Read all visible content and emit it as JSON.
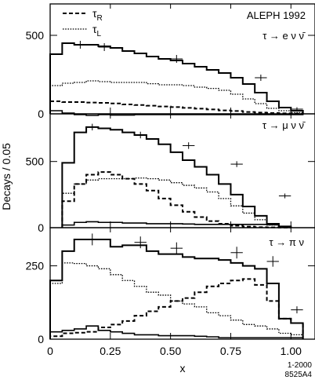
{
  "chart_data": {
    "type": "histogram",
    "title": "ALEPH 1992",
    "xlabel": "x",
    "ylabel": "Decays / 0.05",
    "xlim": [
      0,
      1.1
    ],
    "bin_width": 0.05,
    "x_ticks": [
      "0",
      "0.25",
      "0.50",
      "0.75",
      "1.00"
    ],
    "x_tick_values": [
      0,
      0.25,
      0.5,
      0.75,
      1.0
    ],
    "legend": [
      {
        "label_main": "τ",
        "label_sub": "R",
        "style": "dashed"
      },
      {
        "label_main": "τ",
        "label_sub": "L",
        "style": "dotted"
      }
    ],
    "credit": [
      "1-2000",
      "8525A4"
    ],
    "panels": [
      {
        "label": "τ → e ν ν̄",
        "ylim": [
          0,
          700
        ],
        "y_ticks": [
          0,
          500
        ],
        "start_bin": 0,
        "total": [
          380,
          450,
          440,
          440,
          430,
          420,
          400,
          385,
          365,
          350,
          340,
          320,
          300,
          280,
          260,
          230,
          190,
          135,
          80,
          40,
          20
        ],
        "right": [
          80,
          75,
          75,
          72,
          70,
          66,
          60,
          56,
          52,
          47,
          43,
          38,
          33,
          28,
          22,
          18,
          12,
          8,
          5,
          3,
          2
        ],
        "left": [
          180,
          195,
          200,
          210,
          205,
          200,
          200,
          200,
          192,
          185,
          185,
          180,
          170,
          162,
          150,
          125,
          95,
          65,
          35,
          20,
          8
        ],
        "background": [
          20,
          5,
          -5,
          -10,
          -5,
          -8,
          -8,
          -5,
          -5,
          -5,
          -5,
          -5,
          -5,
          -5,
          -5,
          -5,
          -5,
          -5,
          -5,
          -5,
          -5
        ],
        "data_x": [
          0.125,
          0.225,
          0.525,
          0.875,
          1.025
        ],
        "data_y": [
          440,
          425,
          350,
          230,
          30
        ],
        "data_err": [
          25,
          25,
          25,
          20,
          12
        ]
      },
      {
        "label": "τ → μ ν ν̄",
        "ylim": [
          0,
          860
        ],
        "y_ticks": [
          0,
          500
        ],
        "start_bin": 1,
        "total": [
          490,
          720,
          760,
          750,
          740,
          720,
          700,
          670,
          630,
          570,
          510,
          460,
          400,
          330,
          250,
          160,
          90,
          30,
          10
        ],
        "right": [
          200,
          330,
          400,
          420,
          400,
          370,
          330,
          280,
          220,
          170,
          120,
          80,
          50,
          30,
          15,
          8,
          4,
          2,
          1
        ],
        "left": [
          260,
          330,
          360,
          370,
          370,
          370,
          375,
          370,
          360,
          340,
          320,
          300,
          270,
          220,
          165,
          110,
          60,
          20,
          5
        ],
        "background": [
          20,
          40,
          45,
          40,
          40,
          35,
          35,
          30,
          30,
          30,
          28,
          25,
          25,
          25,
          25,
          25,
          25,
          22,
          10
        ],
        "data_x": [
          0.175,
          0.375,
          0.575,
          0.775,
          0.975
        ],
        "data_y": [
          760,
          700,
          620,
          480,
          240
        ],
        "data_err": [
          25,
          25,
          25,
          22,
          18
        ]
      },
      {
        "label": "τ → π ν",
        "ylim": [
          0,
          380
        ],
        "y_ticks": [
          0,
          250
        ],
        "start_bin": 0,
        "total": [
          200,
          300,
          340,
          340,
          340,
          315,
          320,
          320,
          300,
          290,
          290,
          280,
          275,
          275,
          270,
          260,
          250,
          240,
          190,
          70,
          55
        ],
        "right": [
          10,
          20,
          22,
          25,
          40,
          50,
          62,
          80,
          95,
          110,
          130,
          140,
          160,
          180,
          190,
          200,
          205,
          185,
          130,
          70,
          55
        ],
        "left": [
          190,
          260,
          258,
          250,
          240,
          220,
          200,
          180,
          160,
          150,
          130,
          120,
          110,
          90,
          80,
          65,
          50,
          45,
          35,
          20,
          15
        ],
        "background": [
          25,
          30,
          35,
          45,
          30,
          25,
          20,
          15,
          15,
          12,
          12,
          12,
          10,
          8,
          5,
          5,
          5,
          5,
          5,
          5,
          5
        ],
        "data_x": [
          0.175,
          0.375,
          0.525,
          0.775,
          0.925,
          1.025
        ],
        "data_y": [
          340,
          330,
          310,
          295,
          265,
          100
        ],
        "data_err": [
          20,
          20,
          20,
          20,
          18,
          12
        ]
      }
    ]
  }
}
